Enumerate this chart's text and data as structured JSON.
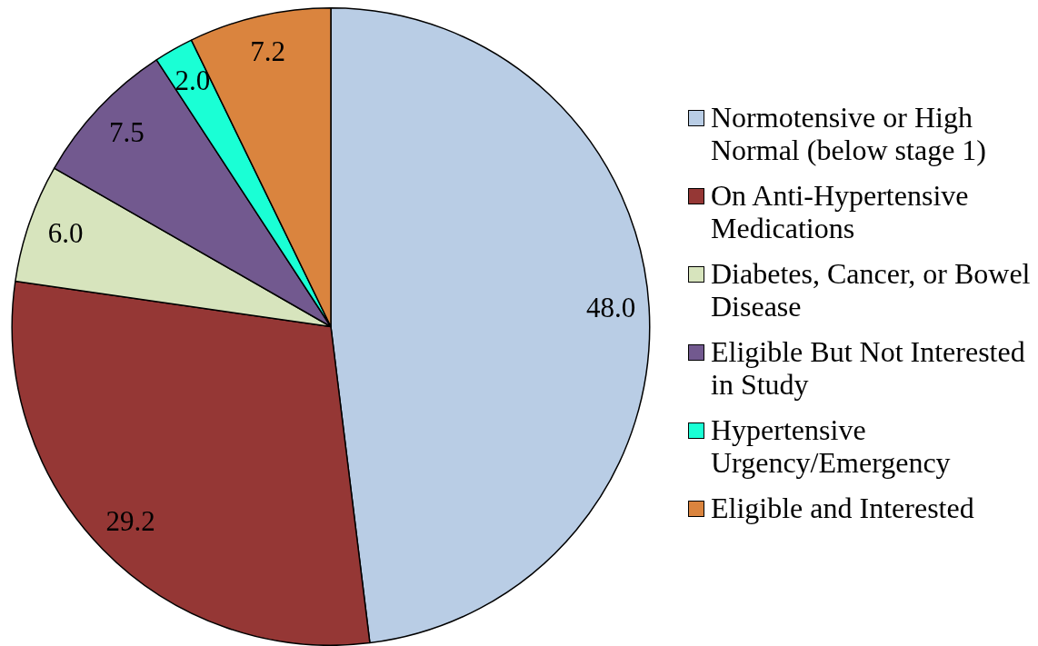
{
  "chart_data": {
    "type": "pie",
    "categories": [
      "Normotensive or High Normal (below stage 1)",
      "On Anti-Hypertensive Medications",
      "Diabetes, Cancer, or Bowel Disease",
      "Eligible But Not Interested in Study",
      "Hypertensive Urgency/Emergency",
      "Eligible and Interested"
    ],
    "values": [
      48.0,
      29.2,
      6.0,
      7.5,
      2.0,
      7.2
    ],
    "colors": [
      "#b9cde5",
      "#953735",
      "#d7e4bd",
      "#72598f",
      "#1affd5",
      "#da843e"
    ],
    "value_labels": [
      "48.0",
      "29.2",
      "6.0",
      "7.5",
      "2.0",
      "7.2"
    ],
    "legend": "right"
  }
}
